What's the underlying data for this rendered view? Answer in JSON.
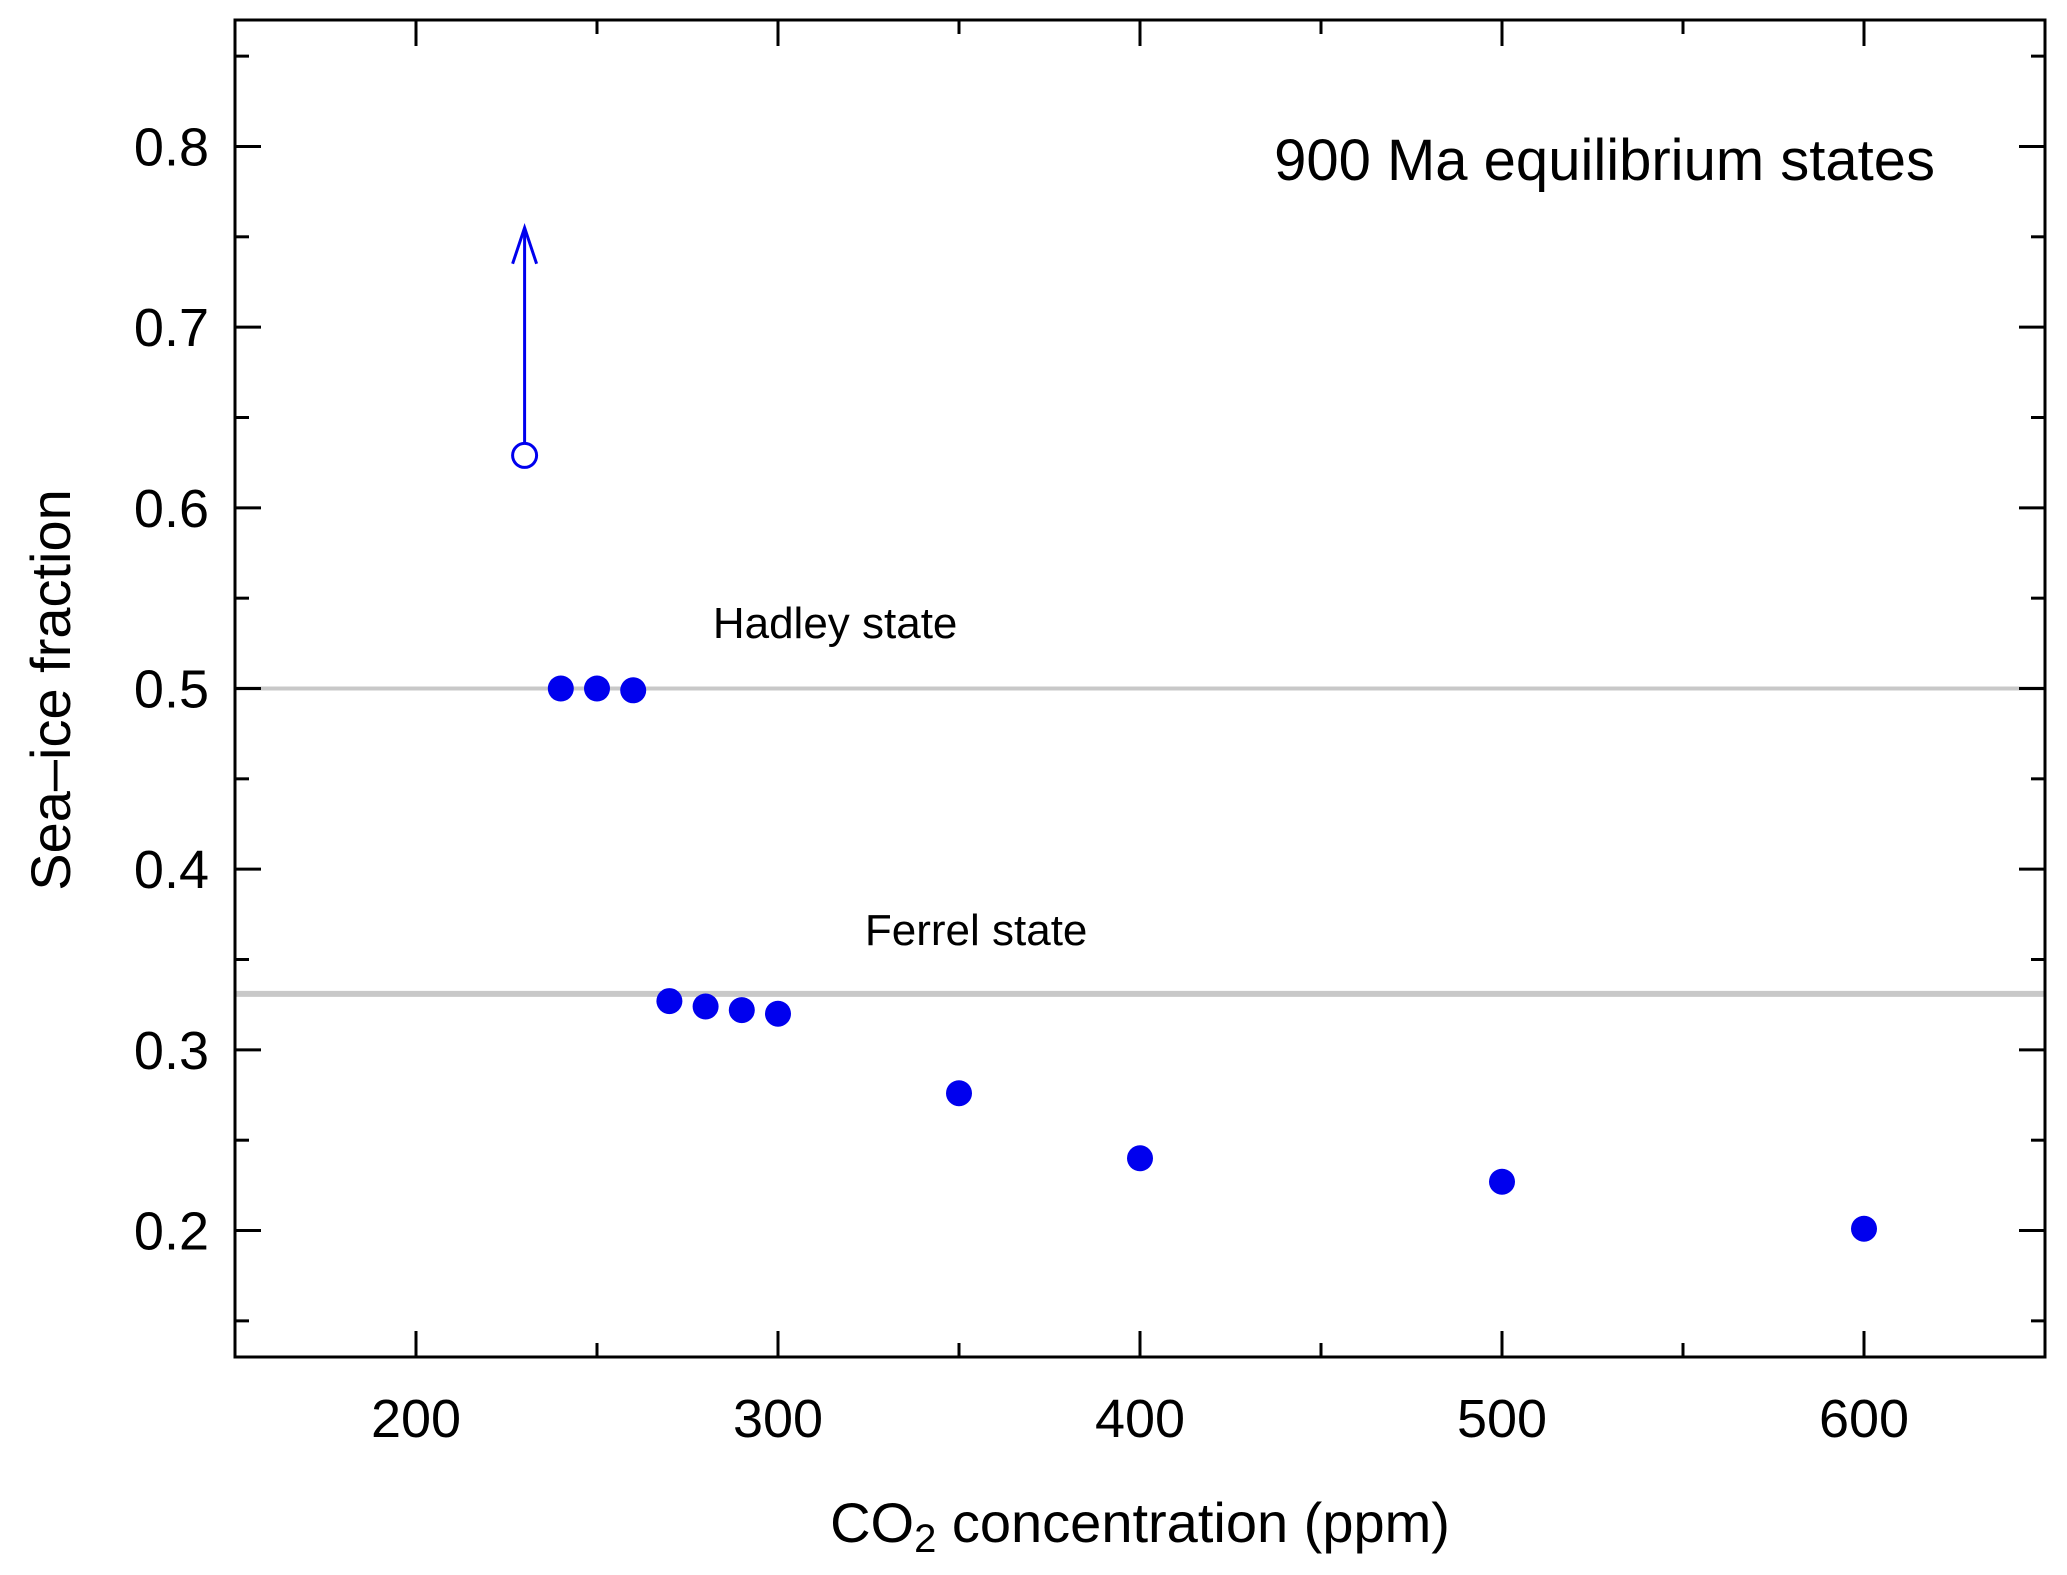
{
  "chart_data": {
    "type": "scatter",
    "title": "900 Ma equilibrium states",
    "xlabel_main": "CO",
    "xlabel_sub": "2",
    "xlabel_rest": " concentration (ppm)",
    "ylabel": "Sea–ice fraction",
    "xlim": [
      150,
      650
    ],
    "ylim": [
      0.13,
      0.87
    ],
    "x_ticks": [
      200,
      300,
      400,
      500,
      600
    ],
    "x_tick_labels": [
      "200",
      "300",
      "400",
      "500",
      "600"
    ],
    "x_minor_ticks": [
      150,
      250,
      350,
      450,
      550,
      650
    ],
    "y_ticks": [
      0.2,
      0.3,
      0.4,
      0.5,
      0.6,
      0.7,
      0.8
    ],
    "y_tick_labels": [
      "0.2",
      "0.3",
      "0.4",
      "0.5",
      "0.6",
      "0.7",
      "0.8"
    ],
    "y_minor_ticks": [
      0.15,
      0.25,
      0.35,
      0.45,
      0.55,
      0.65,
      0.75,
      0.85
    ],
    "grid": false,
    "point_color": "#0000ee",
    "reference_line_color": "#c8c8c8",
    "series": [
      {
        "marker": "filled",
        "points": [
          {
            "x": 240,
            "y": 0.5
          },
          {
            "x": 250,
            "y": 0.5
          },
          {
            "x": 260,
            "y": 0.499
          },
          {
            "x": 270,
            "y": 0.327
          },
          {
            "x": 280,
            "y": 0.324
          },
          {
            "x": 290,
            "y": 0.322
          },
          {
            "x": 300,
            "y": 0.32
          },
          {
            "x": 350,
            "y": 0.276
          },
          {
            "x": 400,
            "y": 0.24
          },
          {
            "x": 500,
            "y": 0.227
          },
          {
            "x": 600,
            "y": 0.201
          }
        ]
      },
      {
        "marker": "open-with-up-arrow",
        "points": [
          {
            "x": 230,
            "y": 0.629,
            "arrow_to": 0.755
          }
        ]
      }
    ],
    "reference_lines": [
      {
        "y": 0.5,
        "label": "Hadley state",
        "label_x": 282,
        "label_y": 0.528
      },
      {
        "y": 0.331,
        "label": "Ferrel state",
        "label_x": 324,
        "label_y": 0.358
      }
    ]
  }
}
